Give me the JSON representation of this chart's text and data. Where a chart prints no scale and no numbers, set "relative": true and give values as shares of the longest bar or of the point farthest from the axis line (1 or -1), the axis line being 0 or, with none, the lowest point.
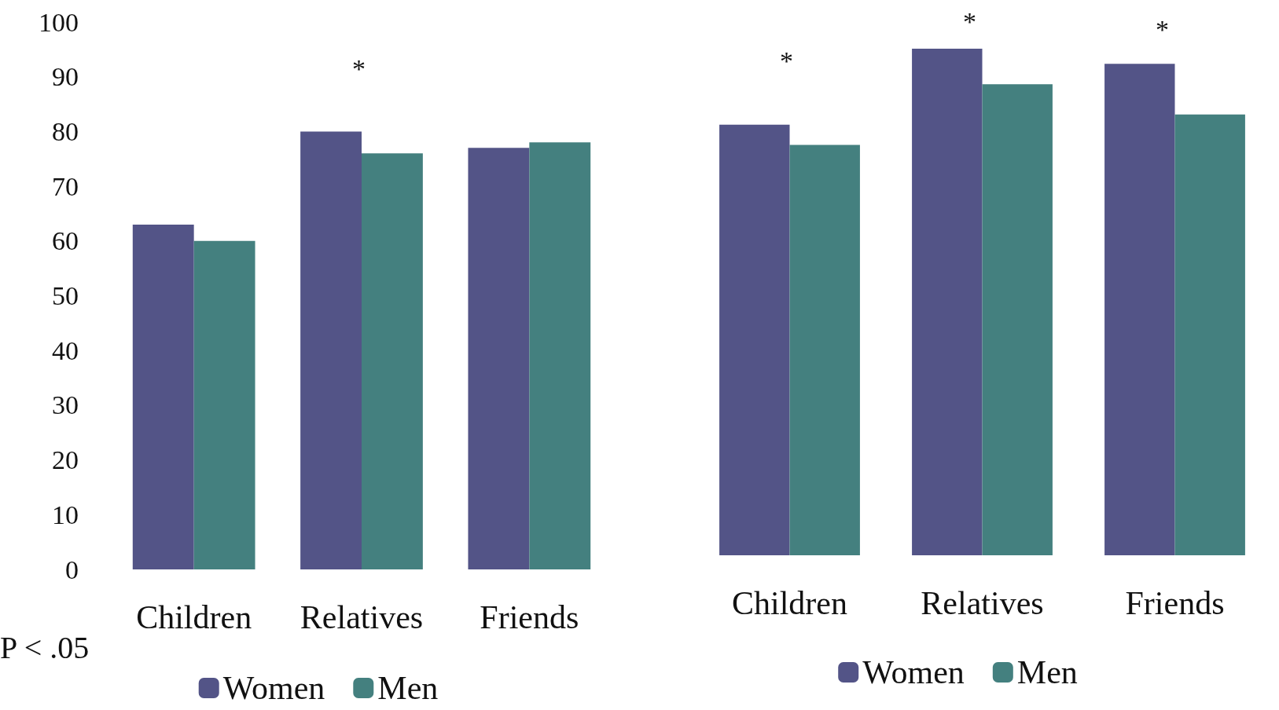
{
  "chart_data": [
    {
      "type": "bar",
      "categories": [
        "Children",
        "Relatives",
        "Friends"
      ],
      "series": [
        {
          "name": "Women",
          "color": "#535487",
          "values": [
            63,
            80,
            77
          ]
        },
        {
          "name": "Men",
          "color": "#44807f",
          "values": [
            60,
            76,
            78
          ]
        }
      ],
      "ylim": [
        0,
        100
      ],
      "yticks": [
        0,
        10,
        20,
        30,
        40,
        50,
        60,
        70,
        80,
        90,
        100
      ],
      "grid": false,
      "legend": "bottom",
      "annotations": [
        "*",
        "P < .05"
      ]
    },
    {
      "type": "bar",
      "categories": [
        "Children",
        "Relatives",
        "Friends"
      ],
      "relative": true,
      "series": [
        {
          "name": "Women",
          "color": "#535487",
          "values": [
            0.85,
            1,
            0.97
          ]
        },
        {
          "name": "Men",
          "color": "#44807f",
          "values": [
            0.81,
            0.93,
            0.87
          ]
        }
      ],
      "grid": false,
      "legend": "bottom",
      "annotations": [
        "*",
        "*",
        "*"
      ]
    }
  ]
}
